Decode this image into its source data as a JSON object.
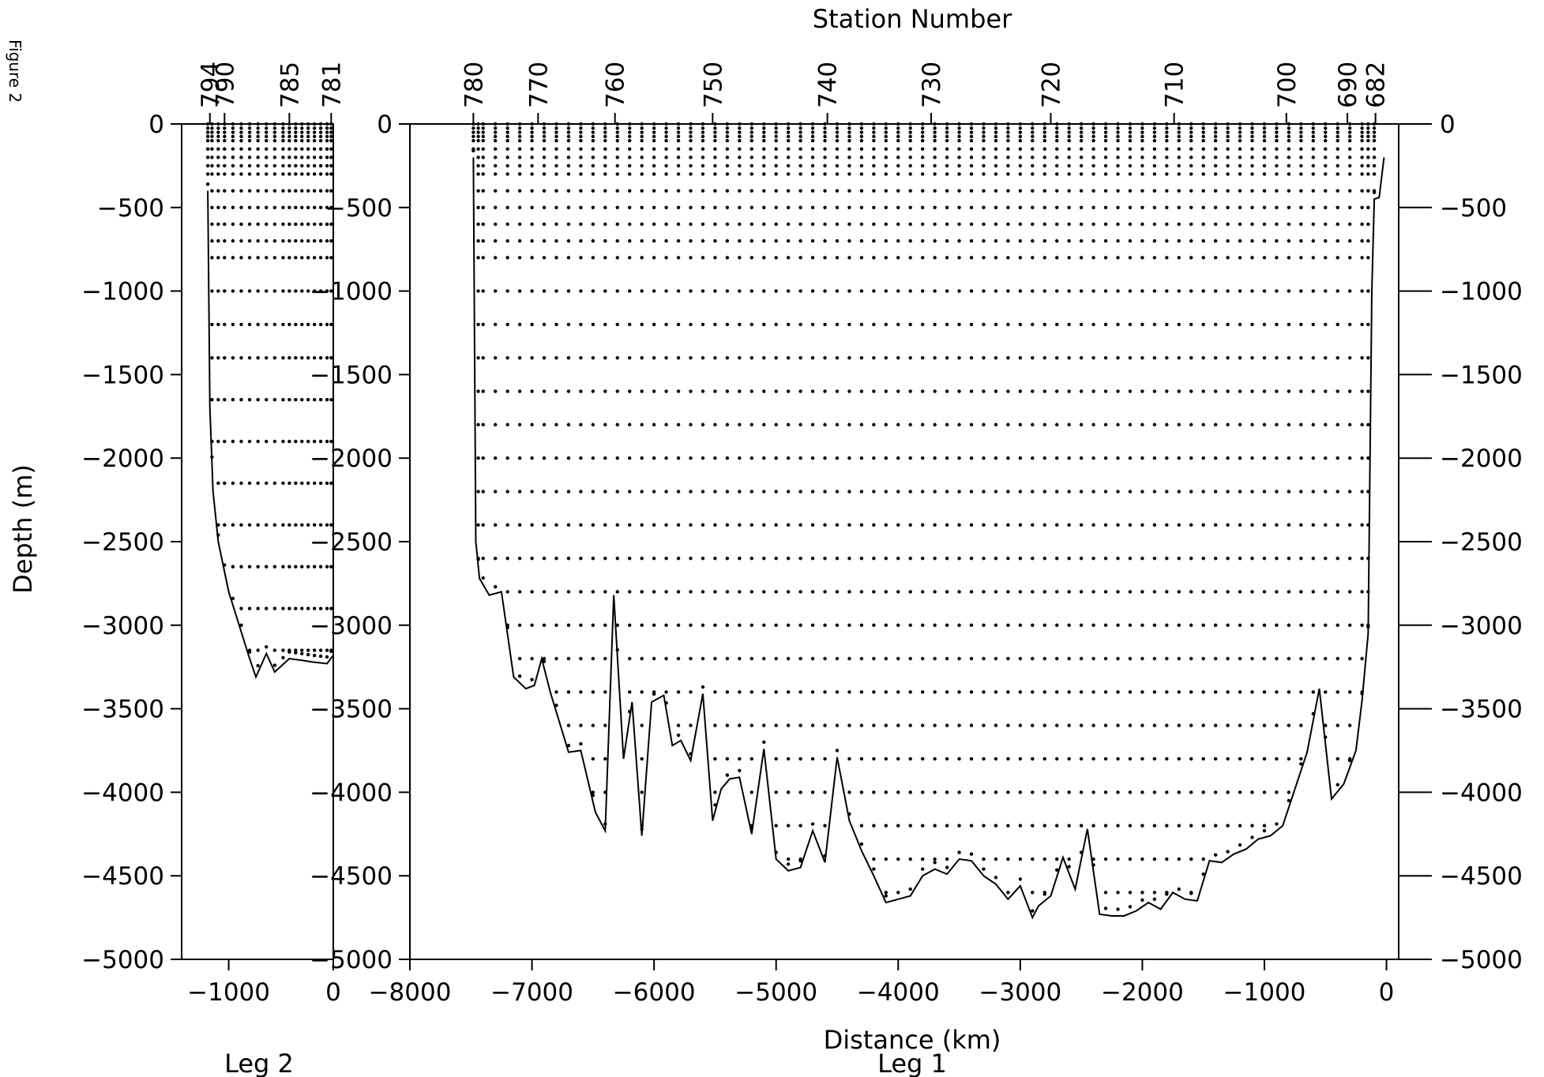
{
  "figure_label": "Figure 2",
  "chart_data": [
    {
      "type": "scatter",
      "panel": "Leg 2",
      "xlabel": "Leg 2",
      "ylabel": "Depth (m)",
      "xlim": [
        -1450,
        0
      ],
      "ylim": [
        -5000,
        0
      ],
      "xticks": [
        -1000,
        0
      ],
      "yticks": [
        0,
        -500,
        -1000,
        -1500,
        -2000,
        -2500,
        -3000,
        -3500,
        -4000,
        -4500,
        -5000
      ],
      "station_ticks": [
        {
          "label": "794",
          "x": -1180
        },
        {
          "label": "790",
          "x": -1040
        },
        {
          "label": "785",
          "x": -420
        },
        {
          "label": "781",
          "x": -20
        }
      ],
      "bottom_profile": {
        "x": [
          -1200,
          -1180,
          -1150,
          -1100,
          -1000,
          -900,
          -800,
          -740,
          -640,
          -560,
          -420,
          -300,
          -200,
          -60,
          0
        ],
        "y": [
          -400,
          -1700,
          -2200,
          -2500,
          -2800,
          -3000,
          -3200,
          -3310,
          -3170,
          -3280,
          -3200,
          -3210,
          -3220,
          -3230,
          -3180
        ]
      },
      "sample_grid": {
        "x": [
          -1200,
          -1160,
          -1100,
          -1040,
          -960,
          -880,
          -800,
          -720,
          -640,
          -560,
          -480,
          -420,
          -360,
          -300,
          -240,
          -180,
          -120,
          -60,
          -20
        ],
        "depths": [
          0,
          -25,
          -50,
          -75,
          -100,
          -150,
          -200,
          -250,
          -300,
          -400,
          -500,
          -600,
          -700,
          -800,
          -1000,
          -1200,
          -1400,
          -1650,
          -1900,
          -2150,
          -2400,
          -2650,
          -2900,
          -3150
        ]
      }
    },
    {
      "type": "scatter",
      "panel": "Leg 1",
      "title": "Station Number",
      "xlabel": "Distance (km)",
      "xlabel2": "Leg 1",
      "ylabel": "Depth (m)",
      "xlim": [
        -8000,
        100
      ],
      "ylim": [
        -5000,
        0
      ],
      "xticks": [
        -8000,
        -7000,
        -6000,
        -5000,
        -4000,
        -3000,
        -2000,
        -1000,
        0
      ],
      "yticks": [
        0,
        -500,
        -1000,
        -1500,
        -2000,
        -2500,
        -3000,
        -3500,
        -4000,
        -4500,
        -5000
      ],
      "station_ticks": [
        {
          "label": "780",
          "x": -7480
        },
        {
          "label": "770",
          "x": -6950
        },
        {
          "label": "760",
          "x": -6320
        },
        {
          "label": "750",
          "x": -5520
        },
        {
          "label": "740",
          "x": -4580
        },
        {
          "label": "730",
          "x": -3730
        },
        {
          "label": "720",
          "x": -2750
        },
        {
          "label": "710",
          "x": -1740
        },
        {
          "label": "700",
          "x": -820
        },
        {
          "label": "690",
          "x": -320
        },
        {
          "label": "682",
          "x": -90
        }
      ],
      "bottom_profile": {
        "x": [
          -7480,
          -7460,
          -7430,
          -7350,
          -7250,
          -7150,
          -7050,
          -6980,
          -6920,
          -6850,
          -6700,
          -6600,
          -6480,
          -6400,
          -6330,
          -6250,
          -6180,
          -6100,
          -6020,
          -5920,
          -5850,
          -5780,
          -5700,
          -5600,
          -5520,
          -5450,
          -5380,
          -5300,
          -5200,
          -5100,
          -5000,
          -4900,
          -4800,
          -4700,
          -4600,
          -4500,
          -4400,
          -4300,
          -4200,
          -4100,
          -4000,
          -3900,
          -3800,
          -3700,
          -3600,
          -3500,
          -3400,
          -3300,
          -3200,
          -3100,
          -3000,
          -2900,
          -2850,
          -2750,
          -2650,
          -2550,
          -2450,
          -2350,
          -2250,
          -2150,
          -2050,
          -1950,
          -1850,
          -1750,
          -1650,
          -1550,
          -1450,
          -1350,
          -1250,
          -1150,
          -1050,
          -950,
          -850,
          -750,
          -650,
          -550,
          -450,
          -350,
          -250,
          -200,
          -150,
          -120,
          -100,
          -60,
          -20
        ],
        "y": [
          -200,
          -2500,
          -2720,
          -2820,
          -2800,
          -3310,
          -3380,
          -3360,
          -3200,
          -3400,
          -3760,
          -3750,
          -4120,
          -4230,
          -2820,
          -3800,
          -3460,
          -4260,
          -3460,
          -3420,
          -3720,
          -3690,
          -3810,
          -3410,
          -4170,
          -3980,
          -3920,
          -3910,
          -4250,
          -3740,
          -4400,
          -4470,
          -4450,
          -4230,
          -4420,
          -3790,
          -4170,
          -4350,
          -4500,
          -4660,
          -4640,
          -4620,
          -4500,
          -4460,
          -4490,
          -4400,
          -4410,
          -4500,
          -4550,
          -4640,
          -4560,
          -4750,
          -4680,
          -4620,
          -4390,
          -4580,
          -4220,
          -4730,
          -4740,
          -4740,
          -4710,
          -4660,
          -4700,
          -4600,
          -4640,
          -4650,
          -4410,
          -4420,
          -4370,
          -4340,
          -4280,
          -4260,
          -4200,
          -3980,
          -3760,
          -3380,
          -4040,
          -3950,
          -3750,
          -3450,
          -3050,
          -1000,
          -450,
          -440,
          -200
        ]
      },
      "sample_grid": {
        "x": [
          -7480,
          -7440,
          -7400,
          -7300,
          -7200,
          -7100,
          -7000,
          -6900,
          -6800,
          -6700,
          -6600,
          -6500,
          -6400,
          -6300,
          -6200,
          -6100,
          -6000,
          -5900,
          -5800,
          -5700,
          -5600,
          -5500,
          -5400,
          -5300,
          -5200,
          -5100,
          -5000,
          -4900,
          -4800,
          -4700,
          -4600,
          -4500,
          -4400,
          -4300,
          -4200,
          -4100,
          -4000,
          -3900,
          -3800,
          -3700,
          -3600,
          -3500,
          -3400,
          -3300,
          -3200,
          -3100,
          -3000,
          -2900,
          -2800,
          -2700,
          -2600,
          -2500,
          -2400,
          -2300,
          -2200,
          -2100,
          -2000,
          -1900,
          -1800,
          -1700,
          -1600,
          -1500,
          -1400,
          -1300,
          -1200,
          -1100,
          -1000,
          -900,
          -800,
          -700,
          -600,
          -500,
          -400,
          -300,
          -200,
          -150,
          -100
        ],
        "depths": [
          0,
          -25,
          -50,
          -75,
          -100,
          -150,
          -200,
          -250,
          -300,
          -400,
          -500,
          -600,
          -700,
          -800,
          -1000,
          -1200,
          -1400,
          -1600,
          -1800,
          -2000,
          -2200,
          -2400,
          -2600,
          -2800,
          -3000,
          -3200,
          -3400,
          -3600,
          -3800,
          -4000,
          -4200,
          -4400,
          -4600
        ]
      }
    }
  ]
}
